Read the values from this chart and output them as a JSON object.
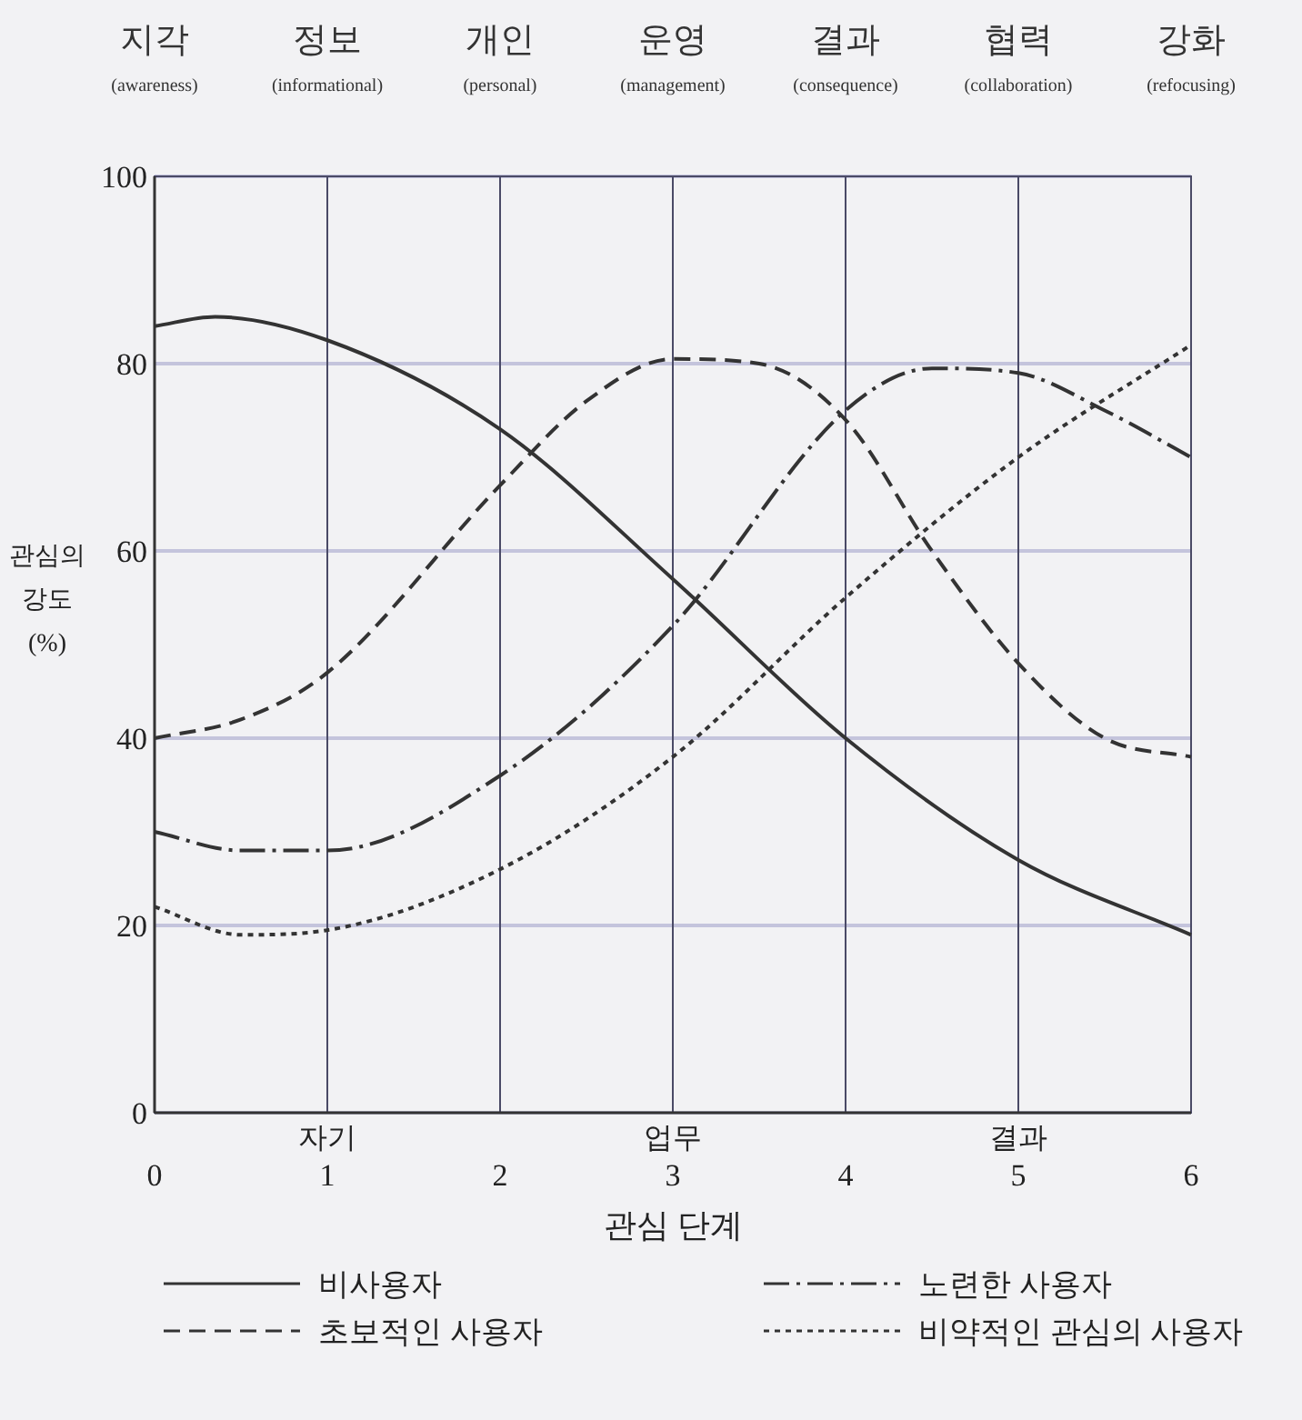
{
  "chart_data": {
    "type": "line",
    "xlabel": "관심 단계",
    "ylabel": "관심의\n강도\n(%)",
    "xlim": [
      0,
      6
    ],
    "xticks": [
      0,
      1,
      2,
      3,
      4,
      5,
      6
    ],
    "ylim": [
      0,
      100
    ],
    "yticks": [
      0,
      20,
      40,
      60,
      80,
      100
    ],
    "grid": true,
    "legend": "bottom",
    "marker": "none",
    "annotations": [
      "지각\n(awareness)",
      "정보\n(informational)",
      "개인\n(personal)",
      "운영\n(management)",
      "결과\n(consequence)",
      "협력\n(collaboration)",
      "강화\n(refocusing)",
      "자기",
      "업무",
      "결과"
    ],
    "series": [
      {
        "name": "비사용자",
        "color": "#333333",
        "line_style": "solid",
        "x": [
          0,
          0.35,
          1,
          2,
          3,
          4,
          5,
          6
        ],
        "values": [
          84,
          85,
          82.5,
          73,
          57,
          40,
          27,
          19
        ]
      },
      {
        "name": "노련한 사용자",
        "color": "#333333",
        "line_style": "dashdot",
        "x": [
          0,
          0.5,
          1,
          2,
          3,
          4,
          4.5,
          5,
          5.5,
          6
        ],
        "values": [
          30,
          28,
          28,
          36,
          52,
          75,
          79.5,
          79,
          75,
          70
        ]
      },
      {
        "name": "초보적인 사용자",
        "color": "#333333",
        "line_style": "dashed",
        "x": [
          0,
          0.5,
          1,
          2,
          2.5,
          3,
          3.5,
          4,
          4.5,
          5,
          5.5,
          6
        ],
        "values": [
          40,
          42,
          47,
          67,
          76,
          80.5,
          80,
          74,
          60,
          48,
          40,
          38
        ]
      },
      {
        "name": "비약적인 관심의 사용자",
        "color": "#333333",
        "line_style": "dotted",
        "x": [
          0,
          0.5,
          1,
          2,
          3,
          4,
          5,
          6
        ],
        "values": [
          22,
          19,
          19.5,
          26,
          38,
          55,
          70,
          82
        ]
      }
    ]
  }
}
